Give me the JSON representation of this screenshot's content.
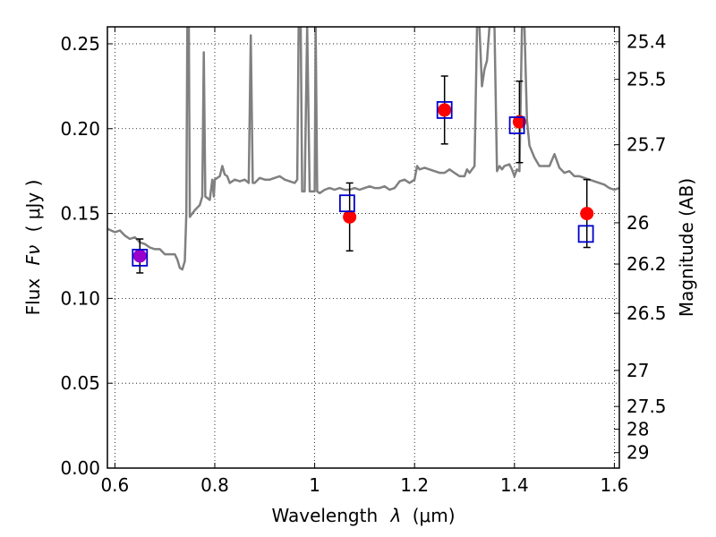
{
  "chart_data": {
    "type": "scatter",
    "xlabel_text": "Wavelength",
    "xlabel_symbol": "λ",
    "xlabel_unit": "(μm)",
    "ylabel_text": "Flux",
    "ylabel_symbol": "Fν",
    "ylabel_unit": "( μJy )",
    "y2label": "Magnitude (AB)",
    "xlim": [
      0.585,
      1.61
    ],
    "ylim": [
      0.0,
      0.26
    ],
    "grid": true,
    "x_ticks": [
      {
        "value": 0.6,
        "label": "0.6"
      },
      {
        "value": 0.8,
        "label": "0.8"
      },
      {
        "value": 1.0,
        "label": "1"
      },
      {
        "value": 1.2,
        "label": "1.2"
      },
      {
        "value": 1.4,
        "label": "1.4"
      },
      {
        "value": 1.6,
        "label": "1.6"
      }
    ],
    "y_ticks": [
      {
        "value": 0.0,
        "label": "0.00"
      },
      {
        "value": 0.05,
        "label": "0.05"
      },
      {
        "value": 0.1,
        "label": "0.10"
      },
      {
        "value": 0.15,
        "label": "0.15"
      },
      {
        "value": 0.2,
        "label": "0.20"
      },
      {
        "value": 0.25,
        "label": "0.25"
      }
    ],
    "y2_ticks": [
      {
        "mag": 25.4,
        "label": "25.4"
      },
      {
        "mag": 25.5,
        "label": "25.5"
      },
      {
        "mag": 25.7,
        "label": "25.7"
      },
      {
        "mag": 26.0,
        "label": "26"
      },
      {
        "mag": 26.2,
        "label": "26.2"
      },
      {
        "mag": 26.5,
        "label": "26.5"
      },
      {
        "mag": 27.0,
        "label": "27"
      },
      {
        "mag": 27.5,
        "label": "27.5"
      },
      {
        "mag": 28.0,
        "label": "28"
      },
      {
        "mag": 29.0,
        "label": "29"
      }
    ],
    "observed": {
      "color": "#ff0000",
      "points": [
        {
          "x": 0.65,
          "y": 0.125,
          "err": 0.01
        },
        {
          "x": 1.07,
          "y": 0.148,
          "err": 0.02
        },
        {
          "x": 1.26,
          "y": 0.211,
          "err": 0.02
        },
        {
          "x": 1.41,
          "y": 0.204,
          "err": 0.024
        },
        {
          "x": 1.545,
          "y": 0.15,
          "err": 0.02
        }
      ]
    },
    "model_photometry": {
      "color": "#0000cc",
      "points": [
        {
          "x": 0.65,
          "y": 0.124
        },
        {
          "x": 1.065,
          "y": 0.156
        },
        {
          "x": 1.26,
          "y": 0.211
        },
        {
          "x": 1.405,
          "y": 0.202
        },
        {
          "x": 1.543,
          "y": 0.138
        }
      ]
    },
    "overlap_color": "#9900cc",
    "spectrum": {
      "color": "#808080",
      "points": [
        [
          0.585,
          0.141
        ],
        [
          0.6,
          0.139
        ],
        [
          0.61,
          0.14
        ],
        [
          0.62,
          0.137
        ],
        [
          0.63,
          0.135
        ],
        [
          0.64,
          0.136
        ],
        [
          0.65,
          0.133
        ],
        [
          0.66,
          0.132
        ],
        [
          0.67,
          0.13
        ],
        [
          0.68,
          0.129
        ],
        [
          0.69,
          0.129
        ],
        [
          0.7,
          0.126
        ],
        [
          0.71,
          0.126
        ],
        [
          0.72,
          0.126
        ],
        [
          0.725,
          0.123
        ],
        [
          0.73,
          0.118
        ],
        [
          0.735,
          0.117
        ],
        [
          0.74,
          0.122
        ],
        [
          0.743,
          0.15
        ],
        [
          0.745,
          0.26
        ],
        [
          0.748,
          0.26
        ],
        [
          0.75,
          0.148
        ],
        [
          0.76,
          0.152
        ],
        [
          0.77,
          0.155
        ],
        [
          0.775,
          0.16
        ],
        [
          0.778,
          0.245
        ],
        [
          0.781,
          0.16
        ],
        [
          0.79,
          0.158
        ],
        [
          0.795,
          0.17
        ],
        [
          0.798,
          0.16
        ],
        [
          0.8,
          0.17
        ],
        [
          0.81,
          0.172
        ],
        [
          0.815,
          0.178
        ],
        [
          0.82,
          0.173
        ],
        [
          0.825,
          0.172
        ],
        [
          0.83,
          0.168
        ],
        [
          0.84,
          0.17
        ],
        [
          0.85,
          0.169
        ],
        [
          0.86,
          0.17
        ],
        [
          0.868,
          0.168
        ],
        [
          0.872,
          0.255
        ],
        [
          0.876,
          0.168
        ],
        [
          0.88,
          0.168
        ],
        [
          0.89,
          0.171
        ],
        [
          0.9,
          0.17
        ],
        [
          0.91,
          0.17
        ],
        [
          0.92,
          0.171
        ],
        [
          0.93,
          0.172
        ],
        [
          0.94,
          0.17
        ],
        [
          0.95,
          0.169
        ],
        [
          0.96,
          0.168
        ],
        [
          0.965,
          0.17
        ],
        [
          0.968,
          0.26
        ],
        [
          0.972,
          0.26
        ],
        [
          0.975,
          0.163
        ],
        [
          0.98,
          0.163
        ],
        [
          0.985,
          0.26
        ],
        [
          0.99,
          0.163
        ],
        [
          1.0,
          0.163
        ],
        [
          1.002,
          0.26
        ],
        [
          1.005,
          0.163
        ],
        [
          1.01,
          0.162
        ],
        [
          1.02,
          0.164
        ],
        [
          1.03,
          0.165
        ],
        [
          1.04,
          0.164
        ],
        [
          1.05,
          0.165
        ],
        [
          1.06,
          0.164
        ],
        [
          1.07,
          0.164
        ],
        [
          1.08,
          0.165
        ],
        [
          1.09,
          0.164
        ],
        [
          1.1,
          0.165
        ],
        [
          1.11,
          0.166
        ],
        [
          1.12,
          0.165
        ],
        [
          1.13,
          0.165
        ],
        [
          1.14,
          0.166
        ],
        [
          1.15,
          0.164
        ],
        [
          1.16,
          0.165
        ],
        [
          1.17,
          0.169
        ],
        [
          1.18,
          0.17
        ],
        [
          1.19,
          0.168
        ],
        [
          1.2,
          0.17
        ],
        [
          1.205,
          0.178
        ],
        [
          1.21,
          0.176
        ],
        [
          1.22,
          0.177
        ],
        [
          1.23,
          0.176
        ],
        [
          1.24,
          0.175
        ],
        [
          1.25,
          0.174
        ],
        [
          1.26,
          0.174
        ],
        [
          1.27,
          0.176
        ],
        [
          1.28,
          0.174
        ],
        [
          1.29,
          0.172
        ],
        [
          1.3,
          0.172
        ],
        [
          1.305,
          0.176
        ],
        [
          1.31,
          0.174
        ],
        [
          1.32,
          0.178
        ],
        [
          1.325,
          0.26
        ],
        [
          1.33,
          0.26
        ],
        [
          1.335,
          0.225
        ],
        [
          1.34,
          0.235
        ],
        [
          1.345,
          0.24
        ],
        [
          1.35,
          0.26
        ],
        [
          1.36,
          0.26
        ],
        [
          1.365,
          0.175
        ],
        [
          1.37,
          0.178
        ],
        [
          1.375,
          0.176
        ],
        [
          1.38,
          0.178
        ],
        [
          1.39,
          0.179
        ],
        [
          1.395,
          0.176
        ],
        [
          1.4,
          0.172
        ],
        [
          1.405,
          0.176
        ],
        [
          1.41,
          0.175
        ],
        [
          1.415,
          0.26
        ],
        [
          1.42,
          0.26
        ],
        [
          1.425,
          0.205
        ],
        [
          1.43,
          0.19
        ],
        [
          1.44,
          0.183
        ],
        [
          1.45,
          0.178
        ],
        [
          1.46,
          0.178
        ],
        [
          1.47,
          0.178
        ],
        [
          1.48,
          0.185
        ],
        [
          1.49,
          0.177
        ],
        [
          1.5,
          0.174
        ],
        [
          1.51,
          0.175
        ],
        [
          1.52,
          0.172
        ],
        [
          1.53,
          0.172
        ],
        [
          1.54,
          0.171
        ],
        [
          1.55,
          0.17
        ],
        [
          1.56,
          0.169
        ],
        [
          1.57,
          0.168
        ],
        [
          1.58,
          0.167
        ],
        [
          1.59,
          0.165
        ],
        [
          1.6,
          0.164
        ],
        [
          1.61,
          0.165
        ]
      ]
    }
  }
}
